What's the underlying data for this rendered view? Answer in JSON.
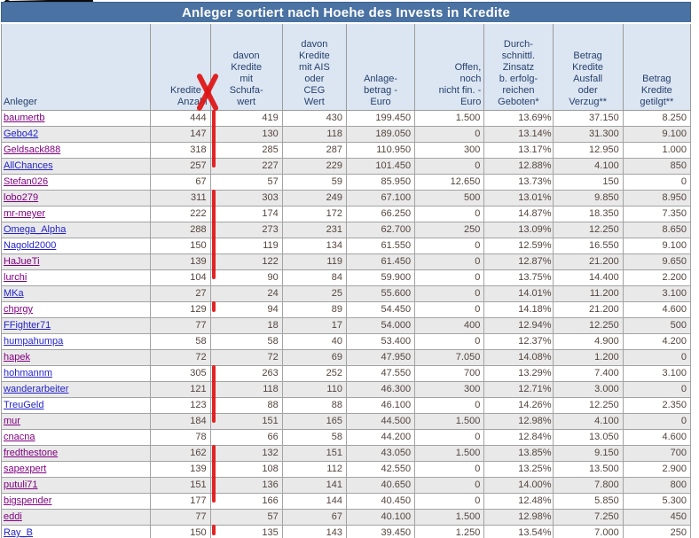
{
  "title": "Anleger sortiert nach Hoehe des Invests in Kredite",
  "colors": {
    "title_bar": "#4a72a2",
    "header_bg": "#dce6f2",
    "header_text": "#26406e",
    "row_alt": "#e9e9e9",
    "body_text": "#55453d",
    "link_blue": "#2323c8",
    "link_visited_purple": "#800080",
    "annotation_red": "#de1212"
  },
  "columns": [
    {
      "id": "anleger",
      "label": "Anleger"
    },
    {
      "id": "kredite-anzahl",
      "label": "Kredite -\nAnzahl"
    },
    {
      "id": "kredite-mit-schufawert",
      "label": "davon\nKredite\nmit\nSchufa-\nwert"
    },
    {
      "id": "kredite-mit-ais-ceg",
      "label": "davon\nKredite\nmit AIS\noder\nCEG\nWert"
    },
    {
      "id": "anlagebetrag-euro",
      "label": "Anlage-\nbetrag -\nEuro"
    },
    {
      "id": "offen-nicht-finanziert",
      "label": "Offen,\nnoch\nnicht fin. -\nEuro"
    },
    {
      "id": "durchschnittl-zinssatz",
      "label": "Durch-\nschnittl.\nZinsatz\nb. erfolg-\nreichen\nGeboten*"
    },
    {
      "id": "betrag-ausfall-verzug",
      "label": "Betrag\nKredite\nAusfall\noder\nVerzug**"
    },
    {
      "id": "betrag-getilgt",
      "label": "Betrag\nKredite\ngetilgt**"
    }
  ],
  "rows": [
    {
      "name": "baumertb",
      "visited": true,
      "values": [
        "444",
        "419",
        "430",
        "199.450",
        "1.500",
        "13.69%",
        "37.150",
        "8.250"
      ]
    },
    {
      "name": "Gebo42",
      "visited": false,
      "values": [
        "147",
        "130",
        "118",
        "189.050",
        "0",
        "13.14%",
        "31.300",
        "9.100"
      ]
    },
    {
      "name": "Geldsack888",
      "visited": true,
      "values": [
        "318",
        "285",
        "287",
        "110.950",
        "300",
        "13.17%",
        "12.950",
        "1.000"
      ]
    },
    {
      "name": "AllChances",
      "visited": false,
      "values": [
        "257",
        "227",
        "229",
        "101.450",
        "0",
        "12.88%",
        "4.100",
        "850"
      ]
    },
    {
      "name": "Stefan026",
      "visited": true,
      "values": [
        "67",
        "57",
        "59",
        "85.950",
        "12.650",
        "13.73%",
        "150",
        "0"
      ]
    },
    {
      "name": "lobo279",
      "visited": true,
      "values": [
        "311",
        "303",
        "249",
        "67.100",
        "500",
        "13.01%",
        "9.850",
        "8.950"
      ]
    },
    {
      "name": "mr-meyer",
      "visited": true,
      "values": [
        "222",
        "174",
        "172",
        "66.250",
        "0",
        "14.87%",
        "18.350",
        "7.350"
      ]
    },
    {
      "name": "Omega_Alpha",
      "visited": false,
      "values": [
        "288",
        "273",
        "231",
        "62.700",
        "250",
        "13.09%",
        "12.250",
        "8.650"
      ]
    },
    {
      "name": "Nagold2000",
      "visited": false,
      "values": [
        "150",
        "119",
        "134",
        "61.550",
        "0",
        "12.59%",
        "16.550",
        "9.100"
      ]
    },
    {
      "name": "HaJueTi",
      "visited": true,
      "values": [
        "139",
        "122",
        "119",
        "61.450",
        "0",
        "12.87%",
        "21.200",
        "9.650"
      ]
    },
    {
      "name": "lurchi",
      "visited": true,
      "values": [
        "104",
        "90",
        "84",
        "59.900",
        "0",
        "13.75%",
        "14.400",
        "2.200"
      ]
    },
    {
      "name": "MKa",
      "visited": false,
      "values": [
        "27",
        "24",
        "25",
        "55.600",
        "0",
        "14.01%",
        "11.200",
        "3.100"
      ]
    },
    {
      "name": "chprgy",
      "visited": true,
      "values": [
        "129",
        "94",
        "89",
        "54.450",
        "0",
        "14.18%",
        "21.200",
        "4.600"
      ]
    },
    {
      "name": "FFighter71",
      "visited": false,
      "values": [
        "77",
        "18",
        "17",
        "54.000",
        "400",
        "12.94%",
        "12.250",
        "500"
      ]
    },
    {
      "name": "humpahumpa",
      "visited": false,
      "values": [
        "58",
        "58",
        "40",
        "53.400",
        "0",
        "12.37%",
        "4.900",
        "4.200"
      ]
    },
    {
      "name": "hapek",
      "visited": true,
      "values": [
        "72",
        "72",
        "69",
        "47.950",
        "7.050",
        "14.08%",
        "1.200",
        "0"
      ]
    },
    {
      "name": "hohmannm",
      "visited": false,
      "values": [
        "305",
        "263",
        "252",
        "47.550",
        "700",
        "13.29%",
        "7.400",
        "3.100"
      ]
    },
    {
      "name": "wanderarbeiter",
      "visited": false,
      "values": [
        "121",
        "118",
        "110",
        "46.300",
        "300",
        "12.71%",
        "3.000",
        "0"
      ]
    },
    {
      "name": "TreuGeld",
      "visited": false,
      "values": [
        "123",
        "88",
        "88",
        "46.100",
        "0",
        "14.26%",
        "12.250",
        "2.350"
      ]
    },
    {
      "name": "mur",
      "visited": true,
      "values": [
        "184",
        "151",
        "165",
        "44.500",
        "1.500",
        "12.98%",
        "4.100",
        "0"
      ]
    },
    {
      "name": "cnacna",
      "visited": true,
      "values": [
        "78",
        "66",
        "58",
        "44.200",
        "0",
        "12.84%",
        "13.050",
        "4.600"
      ]
    },
    {
      "name": "fredthestone",
      "visited": true,
      "values": [
        "162",
        "132",
        "151",
        "43.050",
        "1.500",
        "13.85%",
        "9.150",
        "700"
      ]
    },
    {
      "name": "sapexpert",
      "visited": true,
      "values": [
        "139",
        "108",
        "112",
        "42.550",
        "0",
        "13.25%",
        "13.500",
        "2.900"
      ]
    },
    {
      "name": "putuli71",
      "visited": true,
      "values": [
        "151",
        "136",
        "141",
        "40.650",
        "0",
        "14.00%",
        "7.800",
        "800"
      ]
    },
    {
      "name": "bigspender",
      "visited": true,
      "values": [
        "177",
        "166",
        "144",
        "40.450",
        "0",
        "12.48%",
        "5.850",
        "5.300"
      ]
    },
    {
      "name": "eddi",
      "visited": true,
      "values": [
        "77",
        "57",
        "67",
        "40.100",
        "1.500",
        "12.98%",
        "7.250",
        "450"
      ]
    },
    {
      "name": "Ray_B",
      "visited": false,
      "values": [
        "150",
        "135",
        "143",
        "39.450",
        "1.250",
        "13.54%",
        "7.000",
        "250"
      ]
    }
  ],
  "annotations": {
    "color": "#de1212",
    "header_x_on_column": "Kredite - Anzahl",
    "marked_row_ranges": [
      [
        1,
        4
      ],
      [
        6,
        11
      ],
      [
        13,
        13
      ],
      [
        17,
        20
      ],
      [
        22,
        25
      ],
      [
        27,
        27
      ]
    ],
    "pen_scribble_top_left": true
  }
}
